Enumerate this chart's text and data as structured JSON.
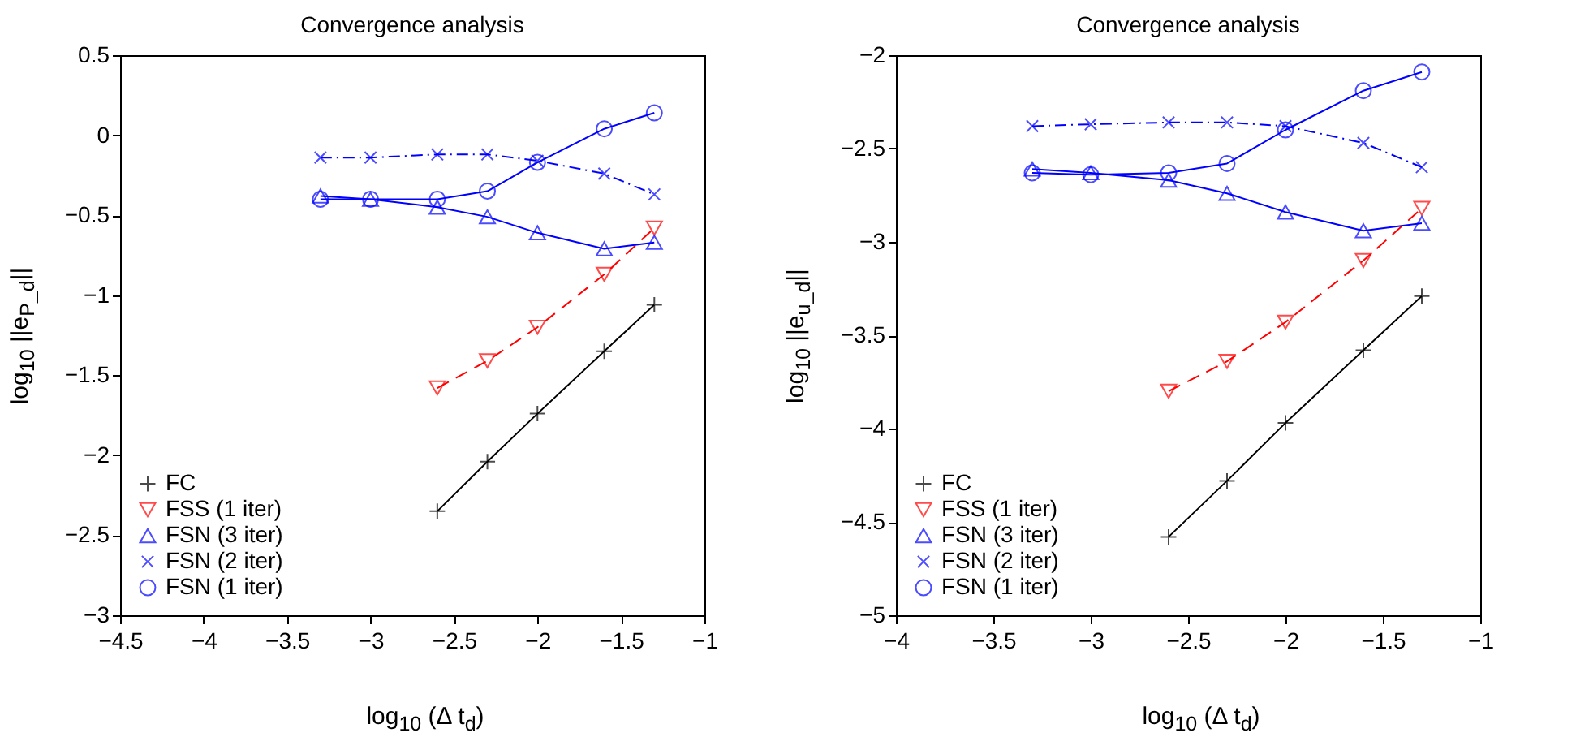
{
  "chart_data": [
    {
      "type": "line",
      "title": "Convergence analysis",
      "xlabel": "log$_{10}$ (Δ t$_{d}$)",
      "ylabel": "log$_{10}$ ||e$_{P_d}$||",
      "x": [
        -3.3,
        -3,
        -2.6,
        -2.3,
        -2,
        -1.6,
        -1.3
      ],
      "xlim": [
        -4.5,
        -1
      ],
      "xticks": [
        -4.5,
        -4,
        -3.5,
        -3,
        -2.5,
        -2,
        -1.5,
        -1
      ],
      "ylim": [
        -3,
        0.5
      ],
      "yticks": [
        -3,
        -2.5,
        -2,
        -1.5,
        -1,
        -0.5,
        0,
        0.5
      ],
      "grid": false,
      "legend": "bottom left",
      "series": [
        {
          "name": "FC",
          "color": "#000000",
          "marker": "plus",
          "line_style": "solid",
          "x": [
            -2.6,
            -2.3,
            -2,
            -1.6,
            -1.3
          ],
          "values": [
            -2.35,
            -2.04,
            -1.74,
            -1.35,
            -1.06
          ]
        },
        {
          "name": "FSS (1 iter)",
          "color": "#ff0000",
          "marker": "triangle-down",
          "line_style": "dashed",
          "x": [
            -2.6,
            -2.3,
            -2,
            -1.6,
            -1.3
          ],
          "values": [
            -1.58,
            -1.41,
            -1.2,
            -0.87,
            -0.58
          ]
        },
        {
          "name": "FSN (3 iter)",
          "color": "#0000ff",
          "marker": "triangle",
          "line_style": "solid",
          "values": [
            -0.38,
            -0.4,
            -0.45,
            -0.51,
            -0.61,
            -0.71,
            -0.67
          ]
        },
        {
          "name": "FSN (2 iter)",
          "color": "#0000ff",
          "marker": "x",
          "line_style": "dashdot",
          "values": [
            -0.14,
            -0.14,
            -0.12,
            -0.12,
            -0.16,
            -0.24,
            -0.37
          ]
        },
        {
          "name": "FSN (1 iter)",
          "color": "#0000ff",
          "marker": "circle",
          "line_style": "solid",
          "values": [
            -0.4,
            -0.4,
            -0.4,
            -0.35,
            -0.17,
            0.04,
            0.14
          ]
        }
      ]
    },
    {
      "type": "line",
      "title": "Convergence analysis",
      "xlabel": "log$_{10}$ (Δ t$_{d}$)",
      "ylabel": "log$_{10}$ ||e$_{u_d}$||",
      "x": [
        -3.3,
        -3,
        -2.6,
        -2.3,
        -2,
        -1.6,
        -1.3
      ],
      "xlim": [
        -4,
        -1
      ],
      "xticks": [
        -4,
        -3.5,
        -3,
        -2.5,
        -2,
        -1.5,
        -1
      ],
      "ylim": [
        -5,
        -2
      ],
      "yticks": [
        -5,
        -4.5,
        -4,
        -3.5,
        -3,
        -2.5,
        -2
      ],
      "grid": false,
      "legend": "bottom left",
      "series": [
        {
          "name": "FC",
          "color": "#000000",
          "marker": "plus",
          "line_style": "solid",
          "x": [
            -2.6,
            -2.3,
            -2,
            -1.6,
            -1.3
          ],
          "values": [
            -4.58,
            -4.28,
            -3.97,
            -3.58,
            -3.29
          ]
        },
        {
          "name": "FSS (1 iter)",
          "color": "#ff0000",
          "marker": "triangle-down",
          "line_style": "dashed",
          "x": [
            -2.6,
            -2.3,
            -2,
            -1.6,
            -1.3
          ],
          "values": [
            -3.8,
            -3.64,
            -3.43,
            -3.1,
            -2.82
          ]
        },
        {
          "name": "FSN (3 iter)",
          "color": "#0000ff",
          "marker": "triangle",
          "line_style": "solid",
          "values": [
            -2.61,
            -2.63,
            -2.67,
            -2.74,
            -2.84,
            -2.94,
            -2.9
          ]
        },
        {
          "name": "FSN (2 iter)",
          "color": "#0000ff",
          "marker": "x",
          "line_style": "dashdot",
          "values": [
            -2.38,
            -2.37,
            -2.36,
            -2.36,
            -2.38,
            -2.47,
            -2.6
          ]
        },
        {
          "name": "FSN (1 iter)",
          "color": "#0000ff",
          "marker": "circle",
          "line_style": "solid",
          "values": [
            -2.63,
            -2.64,
            -2.63,
            -2.58,
            -2.4,
            -2.19,
            -2.09
          ]
        }
      ]
    }
  ]
}
